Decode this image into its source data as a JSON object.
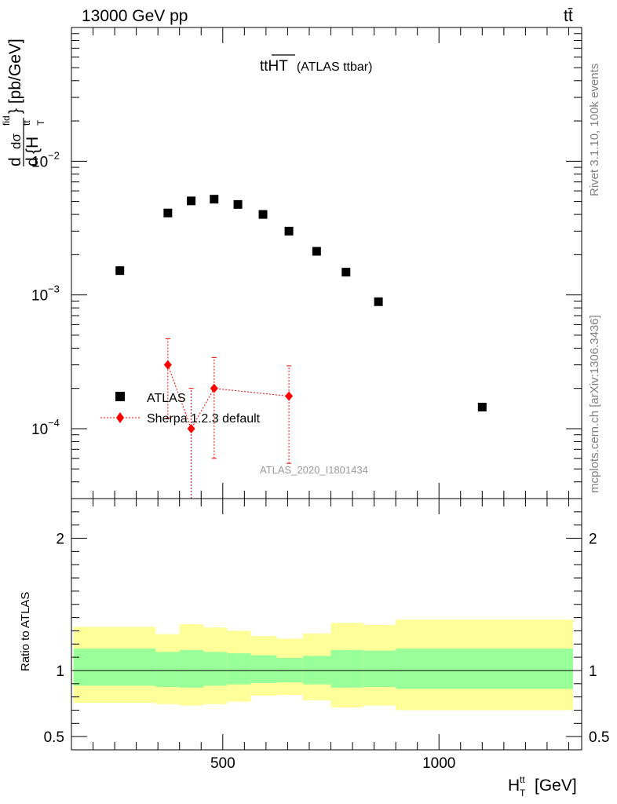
{
  "header": {
    "left": "13000 GeV pp",
    "right": "tt̄"
  },
  "side_labels": {
    "rivet": "Rivet 3.1.10,  100k events",
    "mcplots": "mcplots.cern.ch [arXiv:1306.3436]"
  },
  "colors": {
    "data": "#000000",
    "mc": "#ff0000",
    "band_inner": "#99ff99",
    "band_outer": "#ffff99",
    "watermark": "#9a9a9a"
  },
  "chart_data": [
    {
      "type": "scatter",
      "title": "tt̅H̅T̅ (ATLAS ttbar)",
      "title_main": "ttHT",
      "title_sub": "(ATLAS ttbar)",
      "ylabel": "dσ^{fid} / d{H_T^{tt}} [pb/GeV]",
      "ylabel_parts": {
        "d1": "d",
        "dsigma": "dσ",
        "fid": "fid",
        "d2": "d",
        "brace": "{H",
        "ht_sup": "tt",
        "ht_sub": "T",
        "unit": "} [pb/GeV]"
      },
      "y_scale": "log",
      "ylim": [
        3e-05,
        0.1
      ],
      "xlim": [
        150,
        1330
      ],
      "x_ticks": [
        500,
        1000
      ],
      "y_ticks": [
        {
          "value": 0.0001,
          "label": "10",
          "exp": "−4"
        },
        {
          "value": 0.001,
          "label": "10",
          "exp": "−3"
        },
        {
          "value": 0.01,
          "label": "10",
          "exp": "−2"
        }
      ],
      "legend_position": "middle-left",
      "watermark": "ATLAS_2020_I1801434",
      "series": [
        {
          "name": "ATLAS",
          "marker": "square",
          "x": [
            262,
            373,
            427,
            480,
            535,
            593,
            653,
            717,
            785,
            860,
            1100
          ],
          "y": [
            0.00152,
            0.0041,
            0.00505,
            0.0052,
            0.00475,
            0.004,
            0.003,
            0.00212,
            0.00148,
            0.00089,
            0.000145
          ]
        },
        {
          "name": "Sherpa 1.2.3 default",
          "marker": "diamond",
          "x": [
            373,
            427,
            480,
            653
          ],
          "y": [
            0.0003,
            0.0001,
            0.0002,
            0.000175
          ],
          "y_err_low": [
            0.00018,
            9e-05,
            0.00014,
            0.00012
          ],
          "y_err_high": [
            0.00017,
            0.0001,
            0.00014,
            0.00012
          ]
        }
      ]
    },
    {
      "type": "area",
      "ylabel": "Ratio to ATLAS",
      "xlabel": "H_T^{tt} [GeV]",
      "xlabel_parts": {
        "h": "H",
        "sup": "tt",
        "sub": "T",
        "unit": "[GeV]"
      },
      "xlim": [
        150,
        1330
      ],
      "ylim": [
        0.4,
        2.3
      ],
      "y_ticks": [
        0.5,
        1,
        2
      ],
      "x_ticks": [
        500,
        1000
      ],
      "reference_line": 1,
      "bins": [
        {
          "x_low": 155,
          "x_high": 345,
          "inner_low": 0.885,
          "inner_high": 1.165,
          "outer_low": 0.755,
          "outer_high": 1.33
        },
        {
          "x_low": 345,
          "x_high": 400,
          "inner_low": 0.875,
          "inner_high": 1.14,
          "outer_low": 0.745,
          "outer_high": 1.275
        },
        {
          "x_low": 400,
          "x_high": 455,
          "inner_low": 0.87,
          "inner_high": 1.155,
          "outer_low": 0.735,
          "outer_high": 1.35
        },
        {
          "x_low": 455,
          "x_high": 510,
          "inner_low": 0.885,
          "inner_high": 1.14,
          "outer_low": 0.745,
          "outer_high": 1.325
        },
        {
          "x_low": 510,
          "x_high": 565,
          "inner_low": 0.895,
          "inner_high": 1.13,
          "outer_low": 0.765,
          "outer_high": 1.3
        },
        {
          "x_low": 565,
          "x_high": 625,
          "inner_low": 0.905,
          "inner_high": 1.115,
          "outer_low": 0.81,
          "outer_high": 1.26
        },
        {
          "x_low": 625,
          "x_high": 685,
          "inner_low": 0.91,
          "inner_high": 1.095,
          "outer_low": 0.815,
          "outer_high": 1.24
        },
        {
          "x_low": 685,
          "x_high": 750,
          "inner_low": 0.895,
          "inner_high": 1.11,
          "outer_low": 0.775,
          "outer_high": 1.28
        },
        {
          "x_low": 750,
          "x_high": 825,
          "inner_low": 0.87,
          "inner_high": 1.155,
          "outer_low": 0.72,
          "outer_high": 1.36
        },
        {
          "x_low": 825,
          "x_high": 900,
          "inner_low": 0.875,
          "inner_high": 1.15,
          "outer_low": 0.735,
          "outer_high": 1.345
        },
        {
          "x_low": 900,
          "x_high": 1310,
          "inner_low": 0.86,
          "inner_high": 1.165,
          "outer_low": 0.7,
          "outer_high": 1.385
        }
      ]
    }
  ]
}
